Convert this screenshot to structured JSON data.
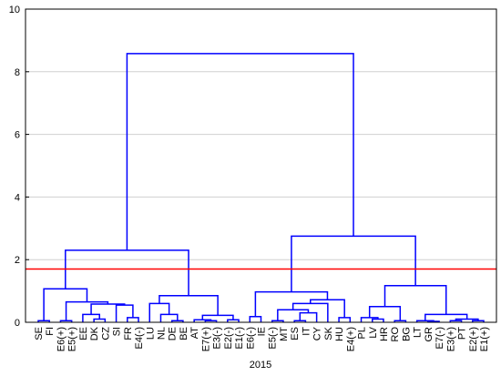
{
  "chart_data": {
    "type": "dendrogram",
    "xlabel": "2015",
    "leaves": [
      "SE",
      "FI",
      "E6(+)",
      "E5(+)",
      "EE",
      "DK",
      "CZ",
      "SI",
      "FR",
      "E4(-)",
      "LU",
      "NL",
      "DE",
      "BE",
      "AT",
      "E7(+)",
      "E3(-)",
      "E2(-)",
      "E1(-)",
      "E6(-)",
      "IE",
      "E5(-)",
      "MT",
      "ES",
      "IT",
      "CY",
      "SK",
      "HU",
      "E4(+)",
      "PL",
      "LV",
      "HR",
      "RO",
      "BG",
      "LT",
      "GR",
      "E7(-)",
      "E3(+)",
      "PT",
      "E2(+)",
      "E1(+)"
    ],
    "merges": [
      {
        "left": 0,
        "right": 1,
        "height": 0.05
      },
      {
        "left": 2,
        "right": 3,
        "height": 0.05
      },
      {
        "left": 5,
        "right": 6,
        "height": 0.1
      },
      {
        "left": 4,
        "right": 43,
        "height": 0.25
      },
      {
        "left": 8,
        "right": 9,
        "height": 0.15
      },
      {
        "left": 7,
        "right": 45,
        "height": 0.55
      },
      {
        "left": 44,
        "right": 46,
        "height": 0.58
      },
      {
        "left": 42,
        "right": 47,
        "height": 0.65
      },
      {
        "left": 41,
        "right": 48,
        "height": 1.07
      },
      {
        "left": 12,
        "right": 13,
        "height": 0.05
      },
      {
        "left": 11,
        "right": 50,
        "height": 0.25
      },
      {
        "left": 10,
        "right": 51,
        "height": 0.6
      },
      {
        "left": 15,
        "right": 16,
        "height": 0.05
      },
      {
        "left": 14,
        "right": 53,
        "height": 0.08
      },
      {
        "left": 17,
        "right": 18,
        "height": 0.08
      },
      {
        "left": 54,
        "right": 55,
        "height": 0.22
      },
      {
        "left": 52,
        "right": 56,
        "height": 0.85
      },
      {
        "left": 49,
        "right": 57,
        "height": 2.3
      },
      {
        "left": 19,
        "right": 20,
        "height": 0.18
      },
      {
        "left": 21,
        "right": 22,
        "height": 0.05
      },
      {
        "left": 23,
        "right": 24,
        "height": 0.05
      },
      {
        "left": 61,
        "right": 25,
        "height": 0.3
      },
      {
        "left": 60,
        "right": 62,
        "height": 0.4
      },
      {
        "left": 63,
        "right": 26,
        "height": 0.6
      },
      {
        "left": 27,
        "right": 28,
        "height": 0.15
      },
      {
        "left": 64,
        "right": 65,
        "height": 0.72
      },
      {
        "left": 59,
        "right": 66,
        "height": 0.97
      },
      {
        "left": 30,
        "right": 31,
        "height": 0.1
      },
      {
        "left": 29,
        "right": 68,
        "height": 0.15
      },
      {
        "left": 32,
        "right": 33,
        "height": 0.05
      },
      {
        "left": 69,
        "right": 70,
        "height": 0.5
      },
      {
        "left": 35,
        "right": 36,
        "height": 0.03
      },
      {
        "left": 34,
        "right": 72,
        "height": 0.05
      },
      {
        "left": 37,
        "right": 38,
        "height": 0.05
      },
      {
        "left": 39,
        "right": 40,
        "height": 0.05
      },
      {
        "left": 74,
        "right": 75,
        "height": 0.1
      },
      {
        "left": 73,
        "right": 76,
        "height": 0.25
      },
      {
        "left": 71,
        "right": 77,
        "height": 1.17
      },
      {
        "left": 67,
        "right": 78,
        "height": 2.75
      },
      {
        "left": 58,
        "right": 79,
        "height": 8.58
      }
    ],
    "color": "#0000ff",
    "cut_height": 1.7,
    "cut_color": "#ff0000",
    "ylim": [
      0,
      10
    ],
    "yticks": [
      0,
      2,
      4,
      6,
      8,
      10
    ],
    "grid": true
  }
}
